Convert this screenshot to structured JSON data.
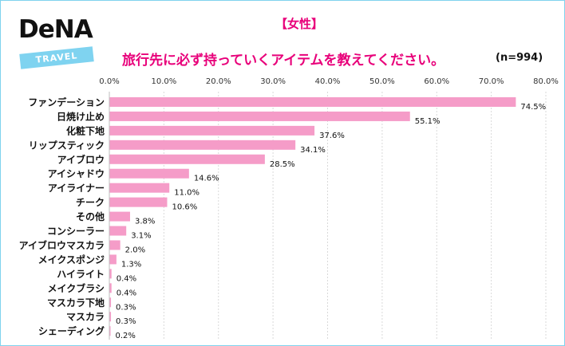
{
  "logo": {
    "brand": "DeNA",
    "tag": "TRAVEL"
  },
  "chart_data": {
    "type": "bar",
    "orientation": "horizontal",
    "title": "【女性】",
    "subtitle": "旅行先に必ず持っていくアイテムを教えてください。",
    "sample_size": "(n=994)",
    "xlim": [
      0,
      80
    ],
    "ticks": [
      "0.0%",
      "10.0%",
      "20.0%",
      "30.0%",
      "40.0%",
      "50.0%",
      "60.0%",
      "70.0%",
      "80.0%"
    ],
    "tick_values": [
      0,
      10,
      20,
      30,
      40,
      50,
      60,
      70,
      80
    ],
    "grid": true,
    "bar_color": "#f59cc8",
    "categories": [
      "ファンデーション",
      "日焼け止め",
      "化粧下地",
      "リップスティック",
      "アイブロウ",
      "アイシャドウ",
      "アイライナー",
      "チーク",
      "その他",
      "コンシーラー",
      "アイブロウマスカラ",
      "メイクスポンジ",
      "ハイライト",
      "メイクブラシ",
      "マスカラ下地",
      "マスカラ",
      "シェーディング"
    ],
    "values": [
      74.5,
      55.1,
      37.6,
      34.1,
      28.5,
      14.6,
      11.0,
      10.6,
      3.8,
      3.1,
      2.0,
      1.3,
      0.4,
      0.4,
      0.3,
      0.3,
      0.2
    ],
    "value_labels": [
      "74.5%",
      "55.1%",
      "37.6%",
      "34.1%",
      "28.5%",
      "14.6%",
      "11.0%",
      "10.6%",
      "3.8%",
      "3.1%",
      "2.0%",
      "1.3%",
      "0.4%",
      "0.4%",
      "0.3%",
      "0.3%",
      "0.2%"
    ]
  }
}
